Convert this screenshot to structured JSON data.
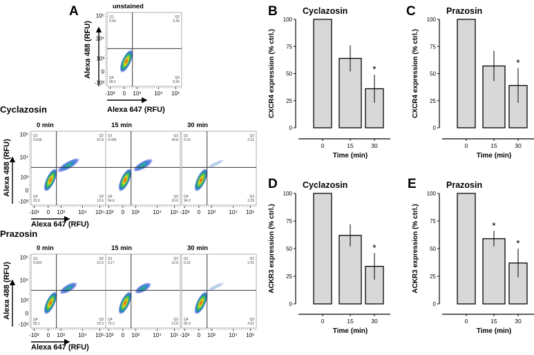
{
  "panel_labels": {
    "A": "A",
    "B": "B",
    "C": "C",
    "D": "D",
    "E": "E"
  },
  "flow": {
    "unstained_title": "unstained",
    "y_axis_label": "Alexa 488 (RFU)",
    "x_axis_label": "Alexa 647 (RFU)",
    "y_ticks": [
      "10⁵",
      "10⁴",
      "10³",
      "0",
      "-10³"
    ],
    "x_ticks": [
      "-10³",
      "0",
      "10³",
      "10⁴",
      "10⁵"
    ],
    "quadrant_names": [
      "Q1",
      "Q2",
      "Q3",
      "Q4"
    ],
    "unstained": {
      "Q1": "0.56",
      "Q2": "0.42",
      "Q3": "0.56",
      "Q4": "98.5"
    },
    "groups": [
      {
        "name": "Cyclazosin",
        "plots": [
          {
            "title": "0 min",
            "Q1": "0.036",
            "Q2": "52.8",
            "Q3": "13.6",
            "Q4": "33.5"
          },
          {
            "title": "15 min",
            "Q1": "0.095",
            "Q2": "34.8",
            "Q3": "10.6",
            "Q4": "54.6"
          },
          {
            "title": "30 min",
            "Q1": "0.33",
            "Q2": "2.21",
            "Q3": "3.29",
            "Q4": "94.2"
          }
        ]
      },
      {
        "name": "Prazosin",
        "plots": [
          {
            "title": "0 min",
            "Q1": "0.062",
            "Q2": "21.6",
            "Q3": "23.3",
            "Q4": "55.1"
          },
          {
            "title": "15 min",
            "Q1": "0.17",
            "Q2": "12.8",
            "Q3": "13.8",
            "Q4": "73.2"
          },
          {
            "title": "30 min",
            "Q1": "0.32",
            "Q2": "2.41",
            "Q3": "4.31",
            "Q4": "93.0"
          }
        ]
      }
    ]
  },
  "chart_data": [
    {
      "panel": "B",
      "type": "bar",
      "title": "Cyclazosin",
      "ylabel": "CXCR4 expression (% ctrl.)",
      "xlabel": "Time (min)",
      "categories": [
        "0",
        "15",
        "30"
      ],
      "values": [
        100,
        64,
        36
      ],
      "errors": [
        0,
        12,
        13
      ],
      "significance": [
        "",
        "",
        "*"
      ],
      "ylim": [
        0,
        100
      ],
      "yticks": [
        "0",
        "25",
        "50",
        "75",
        "100"
      ]
    },
    {
      "panel": "C",
      "type": "bar",
      "title": "Prazosin",
      "ylabel": "CXCR4 expression (% ctrl.)",
      "xlabel": "Time (min)",
      "categories": [
        "0",
        "15",
        "30"
      ],
      "values": [
        100,
        57,
        39
      ],
      "errors": [
        0,
        14,
        16
      ],
      "significance": [
        "",
        "",
        "*"
      ],
      "ylim": [
        0,
        100
      ],
      "yticks": [
        "0",
        "25",
        "50",
        "75",
        "100"
      ]
    },
    {
      "panel": "D",
      "type": "bar",
      "title": "Cyclazosin",
      "ylabel": "ACKR3 expression (% ctrl.)",
      "xlabel": "Time (min)",
      "categories": [
        "0",
        "15",
        "30"
      ],
      "values": [
        100,
        62,
        34
      ],
      "errors": [
        0,
        10,
        12
      ],
      "significance": [
        "",
        "",
        "*"
      ],
      "ylim": [
        0,
        100
      ],
      "yticks": [
        "0",
        "25",
        "50",
        "75",
        "100"
      ]
    },
    {
      "panel": "E",
      "type": "bar",
      "title": "Prazosin",
      "ylabel": "ACKR3 expression (% ctrl.)",
      "xlabel": "Time (min)",
      "categories": [
        "0",
        "15",
        "30"
      ],
      "values": [
        100,
        59,
        37
      ],
      "errors": [
        0,
        7,
        13
      ],
      "significance": [
        "",
        "*",
        "*"
      ],
      "ylim": [
        0,
        100
      ],
      "yticks": [
        "0",
        "25",
        "50",
        "75",
        "100"
      ]
    }
  ]
}
